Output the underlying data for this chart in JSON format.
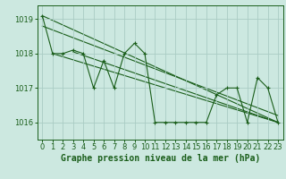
{
  "bg_color": "#cce8e0",
  "grid_color": "#aaccc4",
  "line_color": "#1a5e1a",
  "title": "Graphe pression niveau de la mer (hPa)",
  "ylim": [
    1015.5,
    1019.4
  ],
  "xlim": [
    -0.5,
    23.5
  ],
  "yticks": [
    1016,
    1017,
    1018,
    1019
  ],
  "xticks": [
    0,
    1,
    2,
    3,
    4,
    5,
    6,
    7,
    8,
    9,
    10,
    11,
    12,
    13,
    14,
    15,
    16,
    17,
    18,
    19,
    20,
    21,
    22,
    23
  ],
  "series": [
    [
      0,
      1019.1
    ],
    [
      1,
      1018.0
    ],
    [
      2,
      1018.0
    ],
    [
      3,
      1018.1
    ],
    [
      4,
      1018.0
    ],
    [
      5,
      1017.0
    ],
    [
      6,
      1017.8
    ],
    [
      7,
      1017.0
    ],
    [
      8,
      1018.0
    ],
    [
      9,
      1018.3
    ],
    [
      10,
      1018.0
    ],
    [
      11,
      1016.0
    ],
    [
      12,
      1016.0
    ],
    [
      13,
      1016.0
    ],
    [
      14,
      1016.0
    ],
    [
      15,
      1016.0
    ],
    [
      16,
      1016.0
    ],
    [
      17,
      1016.8
    ],
    [
      18,
      1017.0
    ],
    [
      19,
      1017.0
    ],
    [
      20,
      1016.0
    ],
    [
      21,
      1017.3
    ],
    [
      22,
      1017.0
    ],
    [
      23,
      1016.0
    ]
  ],
  "trend_lines": [
    [
      [
        0,
        1019.1
      ],
      [
        23,
        1016.0
      ]
    ],
    [
      [
        1,
        1018.0
      ],
      [
        23,
        1016.0
      ]
    ],
    [
      [
        3,
        1018.05
      ],
      [
        23,
        1016.0
      ]
    ],
    [
      [
        0,
        1018.8
      ],
      [
        23,
        1016.2
      ]
    ]
  ],
  "title_fontsize": 7,
  "tick_fontsize": 6
}
